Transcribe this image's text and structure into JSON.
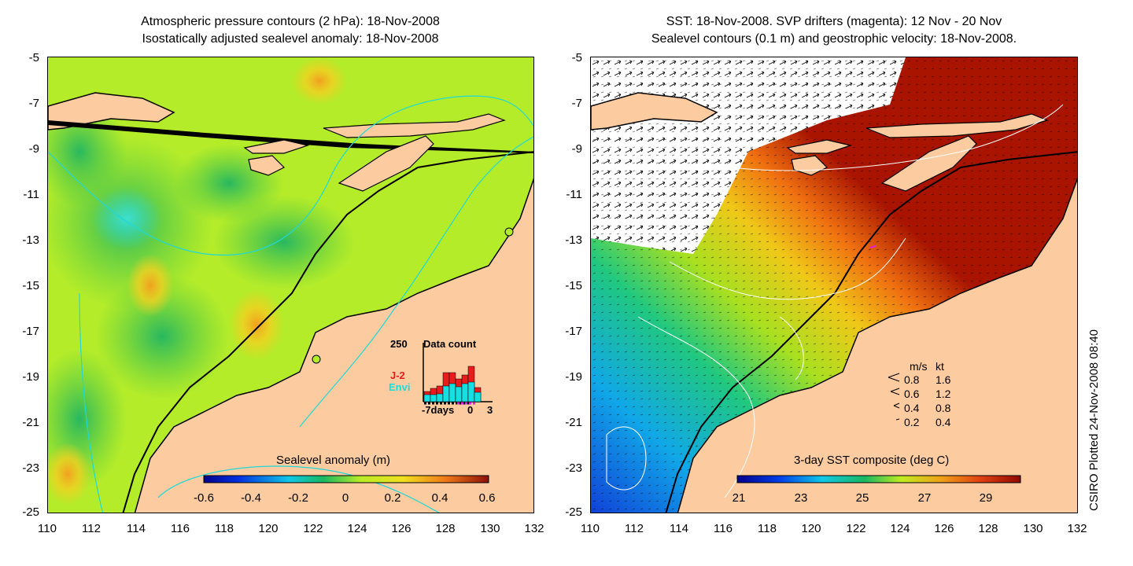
{
  "left_panel": {
    "title_line1": "Atmospheric pressure contours (2 hPa): 18-Nov-2008",
    "title_line2": "Isostatically adjusted sealevel anomaly: 18-Nov-2008",
    "colorbar_label": "Sealevel anomaly (m)",
    "colorbar_ticks": [
      "-0.6",
      "-0.4",
      "-0.2",
      "0",
      "0.2",
      "0.4",
      "0.6"
    ],
    "inset": {
      "max_label": "250",
      "title": "Data count",
      "series_j2": "J-2",
      "series_envi": "Envi",
      "x_left": "-7days",
      "x_zero": "0",
      "x_right": "3",
      "j2_color": "#e81c1c",
      "envi_color": "#15e0e0"
    }
  },
  "right_panel": {
    "title_line1": "SST: 18-Nov-2008. SVP drifters (magenta): 12 Nov - 20 Nov",
    "title_line2": "Sealevel contours (0.1 m) and geostrophic velocity: 18-Nov-2008.",
    "colorbar_label": "3-day SST composite (deg C)",
    "colorbar_ticks": [
      "21",
      "23",
      "25",
      "27",
      "29"
    ],
    "velocity_legend": {
      "header_ms": "m/s",
      "header_kt": "kt",
      "rows": [
        {
          "ms": "0.8",
          "kt": "1.6"
        },
        {
          "ms": "0.6",
          "kt": "1.2"
        },
        {
          "ms": "0.4",
          "kt": "0.8"
        },
        {
          "ms": "0.2",
          "kt": "0.4"
        }
      ]
    }
  },
  "axes": {
    "y_ticks": [
      "-5",
      "-7",
      "-9",
      "-11",
      "-13",
      "-15",
      "-17",
      "-19",
      "-21",
      "-23",
      "-25"
    ],
    "x_ticks": [
      "110",
      "112",
      "114",
      "116",
      "118",
      "120",
      "122",
      "124",
      "126",
      "128",
      "130",
      "132"
    ]
  },
  "credit": "CSIRO Plotted 24-Nov-2008 08:40",
  "colors": {
    "land": "#fccca0",
    "sla_background": "#b4ec2a",
    "sst_warm": "#a81400"
  }
}
